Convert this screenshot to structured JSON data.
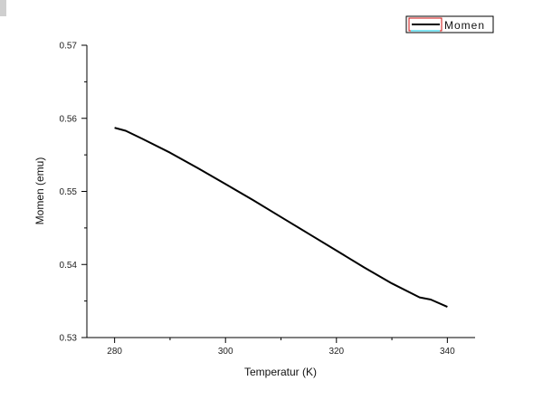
{
  "chart_data": {
    "type": "line",
    "title": "",
    "xlabel": "Temperatur (K)",
    "ylabel": "Momen (emu)",
    "xlim": [
      275,
      345
    ],
    "ylim": [
      0.53,
      0.57
    ],
    "xticks": [
      280,
      300,
      320,
      340
    ],
    "xtick_labels": [
      "280",
      "300",
      "320",
      "340"
    ],
    "yticks": [
      0.53,
      0.54,
      0.55,
      0.56,
      0.57
    ],
    "ytick_labels": [
      "0.53",
      "0.54",
      "0.55",
      "0.56",
      "0.57"
    ],
    "grid": false,
    "legend": {
      "position": "top-right",
      "entries": [
        "Momen"
      ]
    },
    "series": [
      {
        "name": "Momen",
        "color": "#000000",
        "x": [
          280,
          282,
          285,
          290,
          295,
          300,
          305,
          310,
          315,
          320,
          325,
          330,
          335,
          337,
          340
        ],
        "y": [
          0.5587,
          0.5583,
          0.5572,
          0.5553,
          0.5532,
          0.551,
          0.5488,
          0.5465,
          0.5442,
          0.5419,
          0.5396,
          0.5374,
          0.5355,
          0.5352,
          0.5342
        ]
      }
    ]
  }
}
